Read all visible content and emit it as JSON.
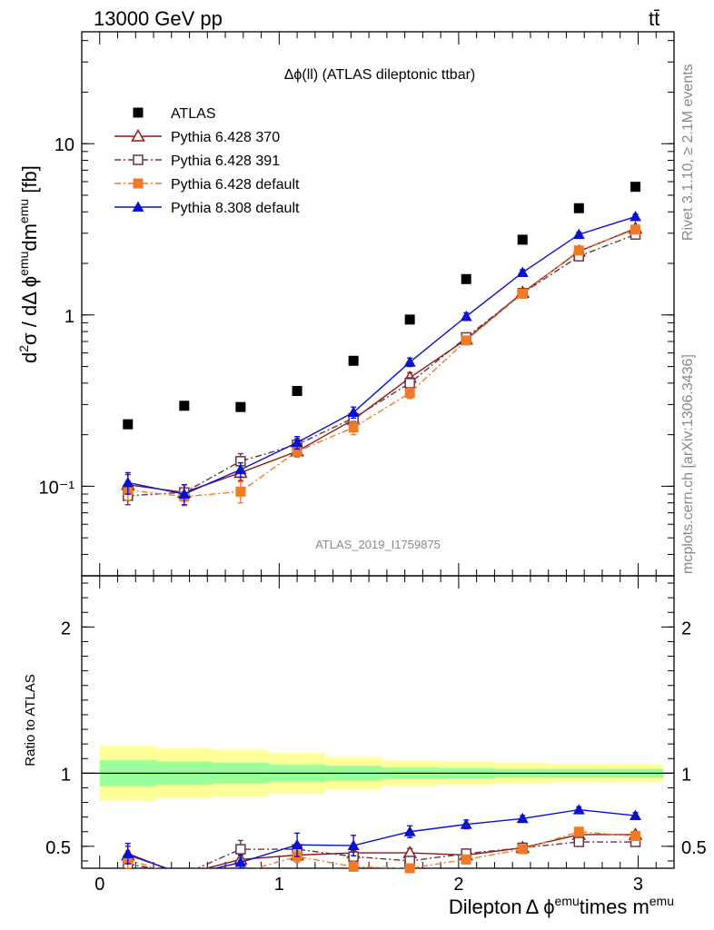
{
  "header": {
    "energy_label": "13000 GeV pp",
    "process_label": "tt̄"
  },
  "side_labels": {
    "rivet": "Rivet 3.1.10, ≥ 2.1M events",
    "mcplots": "mcplots.cern.ch [arXiv:1306.3436]"
  },
  "chart_data": [
    {
      "type": "scatter",
      "title": "Δϕ(ll) (ATLAS dileptonic ttbar)",
      "watermark": "ATLAS_2019_I1759875",
      "ylabel": "d²σ / dΔ ϕ^emu dm^emu [fb]",
      "ylabel_parts": {
        "pre": "d",
        "sup1": "2",
        "mid": "σ / dΔ ϕ",
        "sup2": "emu",
        "post": "dm",
        "sup3": "emu",
        "tail": " [fb]"
      },
      "yscale": "log",
      "ylim": [
        0.03,
        45
      ],
      "xlim": [
        -0.1,
        3.2
      ],
      "y_ticks": [
        {
          "v": 0.1,
          "label": "10⁻¹"
        },
        {
          "v": 1,
          "label": "1"
        },
        {
          "v": 10,
          "label": "10"
        }
      ],
      "legend_placement": "top-left",
      "x": [
        0.157,
        0.471,
        0.785,
        1.1,
        1.414,
        1.728,
        2.042,
        2.356,
        2.67,
        2.985
      ],
      "series": [
        {
          "name": "ATLAS",
          "color": "#000000",
          "marker": "square",
          "line": "none",
          "values": [
            0.23,
            0.295,
            0.29,
            0.36,
            0.54,
            0.94,
            1.62,
            2.75,
            4.2,
            5.6
          ],
          "errors": [
            0.01,
            0.01,
            0.01,
            0.015,
            0.02,
            0.03,
            0.05,
            0.08,
            0.12,
            0.15
          ]
        },
        {
          "name": "Pythia 6.428 370",
          "color": "#8b1a1a",
          "marker": "triangle-open",
          "line": "solid",
          "values": [
            0.102,
            0.092,
            0.12,
            0.16,
            0.245,
            0.43,
            0.72,
            1.35,
            2.35,
            3.2
          ],
          "errors": [
            0.015,
            0.01,
            0.012,
            0.012,
            0.02,
            0.03,
            0.04,
            0.06,
            0.08,
            0.1
          ]
        },
        {
          "name": "Pythia 6.428 391",
          "color": "#6b3344",
          "marker": "square-open",
          "line": "dashdot",
          "values": [
            0.088,
            0.092,
            0.14,
            0.175,
            0.25,
            0.4,
            0.74,
            1.34,
            2.2,
            2.95
          ],
          "errors": [
            0.01,
            0.01,
            0.015,
            0.015,
            0.02,
            0.03,
            0.04,
            0.06,
            0.08,
            0.1
          ]
        },
        {
          "name": "Pythia 6.428 default",
          "color": "#f07a28",
          "marker": "square",
          "line": "dashdot",
          "values": [
            0.095,
            0.087,
            0.093,
            0.16,
            0.22,
            0.35,
            0.71,
            1.33,
            2.38,
            3.15
          ],
          "errors": [
            0.012,
            0.01,
            0.013,
            0.012,
            0.02,
            0.025,
            0.04,
            0.06,
            0.08,
            0.1
          ]
        },
        {
          "name": "Pythia 8.308 default",
          "color": "#0a10d0",
          "marker": "triangle",
          "line": "solid",
          "values": [
            0.105,
            0.09,
            0.125,
            0.18,
            0.27,
            0.53,
            0.98,
            1.77,
            2.95,
            3.75
          ],
          "errors": [
            0.015,
            0.012,
            0.012,
            0.015,
            0.02,
            0.03,
            0.05,
            0.07,
            0.09,
            0.12
          ]
        }
      ]
    },
    {
      "type": "scatter",
      "ylabel": "Ratio to ATLAS",
      "xlabel": "Dilepton Δ ϕ^emu times m^emu",
      "xlabel_parts": {
        "pre": "Dilepton",
        "mid": "Δ ϕ",
        "sup1": "emu",
        "mid2": "times m",
        "sup2": "emu"
      },
      "ylim": [
        0.35,
        2.35
      ],
      "xlim": [
        -0.1,
        3.2
      ],
      "x_ticks": [
        {
          "v": 0,
          "label": "0"
        },
        {
          "v": 1,
          "label": "1"
        },
        {
          "v": 2,
          "label": "2"
        },
        {
          "v": 3,
          "label": "3"
        }
      ],
      "y_ticks": [
        {
          "v": 0.5,
          "label": "0.5"
        },
        {
          "v": 1,
          "label": "1"
        },
        {
          "v": 2,
          "label": "2"
        }
      ],
      "bands": {
        "edges": [
          0,
          0.314,
          0.628,
          0.942,
          1.257,
          1.571,
          1.885,
          2.199,
          2.513,
          2.827,
          3.141
        ],
        "yellow_half": [
          0.19,
          0.17,
          0.16,
          0.14,
          0.11,
          0.09,
          0.08,
          0.07,
          0.06,
          0.06
        ],
        "green_half": [
          0.09,
          0.08,
          0.07,
          0.06,
          0.05,
          0.04,
          0.035,
          0.03,
          0.03,
          0.03
        ],
        "yellow_color": "#ffff99",
        "green_color": "#99ff99"
      },
      "x": [
        0.157,
        0.471,
        0.785,
        1.1,
        1.414,
        1.728,
        2.042,
        2.356,
        2.67,
        2.985
      ],
      "series": [
        {
          "name": "Pythia 6.428 370",
          "color": "#8b1a1a",
          "marker": "triangle-open",
          "line": "solid",
          "values": [
            0.44,
            0.31,
            0.41,
            0.44,
            0.455,
            0.455,
            0.44,
            0.49,
            0.58,
            0.58
          ],
          "errors": [
            0.06,
            0.04,
            0.04,
            0.03,
            0.03,
            0.03,
            0.02,
            0.02,
            0.02,
            0.02
          ]
        },
        {
          "name": "Pythia 6.428 391",
          "color": "#6b3344",
          "marker": "square-open",
          "line": "dashdot",
          "values": [
            0.38,
            0.31,
            0.48,
            0.48,
            0.43,
            0.4,
            0.45,
            0.49,
            0.53,
            0.53
          ],
          "errors": [
            0.06,
            0.04,
            0.06,
            0.04,
            0.04,
            0.03,
            0.03,
            0.02,
            0.02,
            0.02
          ]
        },
        {
          "name": "Pythia 6.428 default",
          "color": "#f07a28",
          "marker": "square",
          "line": "dashdot",
          "values": [
            0.41,
            0.29,
            0.32,
            0.43,
            0.36,
            0.35,
            0.41,
            0.48,
            0.6,
            0.57
          ],
          "errors": [
            0.06,
            0.04,
            0.05,
            0.04,
            0.04,
            0.03,
            0.03,
            0.02,
            0.02,
            0.02
          ]
        },
        {
          "name": "Pythia 8.308 default",
          "color": "#0a10d0",
          "marker": "triangle",
          "line": "solid",
          "values": [
            0.45,
            0.3,
            0.39,
            0.51,
            0.505,
            0.6,
            0.65,
            0.69,
            0.75,
            0.71
          ],
          "errors": [
            0.07,
            0.05,
            0.05,
            0.08,
            0.07,
            0.04,
            0.03,
            0.02,
            0.02,
            0.02
          ]
        }
      ]
    }
  ]
}
